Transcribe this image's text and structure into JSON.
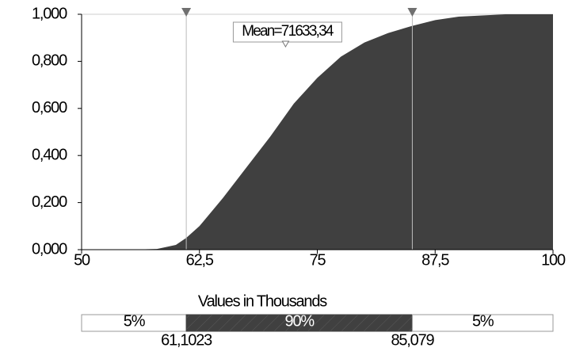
{
  "chart_data": {
    "type": "area",
    "x": [
      50,
      55,
      58,
      60,
      61.1023,
      62.5,
      65,
      67.5,
      70,
      72.5,
      75,
      77.5,
      80,
      82.5,
      85,
      87.5,
      90,
      95,
      100
    ],
    "series": [
      {
        "color": "#404040",
        "values": [
          0,
          0,
          0.003,
          0.02,
          0.05,
          0.1,
          0.22,
          0.35,
          0.48,
          0.62,
          0.73,
          0.82,
          0.88,
          0.92,
          0.95,
          0.975,
          0.99,
          1,
          1
        ]
      }
    ],
    "xlim": [
      50,
      100
    ],
    "ylim": [
      0,
      1
    ],
    "xticks": [
      50,
      {
        "value": 62.5,
        "label": "62,5"
      },
      75,
      {
        "value": 87.5,
        "label": "87,5"
      },
      100
    ],
    "yticks": [
      {
        "value": 0,
        "label": "0,000"
      },
      {
        "value": 0.2,
        "label": "0,200"
      },
      {
        "value": 0.4,
        "label": "0,400"
      },
      {
        "value": 0.6,
        "label": "0,600"
      },
      {
        "value": 0.8,
        "label": "0,800"
      },
      {
        "value": 1,
        "label": "1,000"
      }
    ],
    "xlabel": "Values in Thousands",
    "mean": {
      "value": 71.63334,
      "label": "Mean=71633,34"
    },
    "percentile_markers": [
      {
        "value": 61.1023,
        "label": "61,1023"
      },
      {
        "value": 85.079,
        "label": "85,079"
      }
    ],
    "band_labels": [
      {
        "value": 5,
        "label": "5%"
      },
      {
        "value": 90,
        "label": "90%"
      },
      {
        "value": 5,
        "label": "5%"
      }
    ]
  }
}
